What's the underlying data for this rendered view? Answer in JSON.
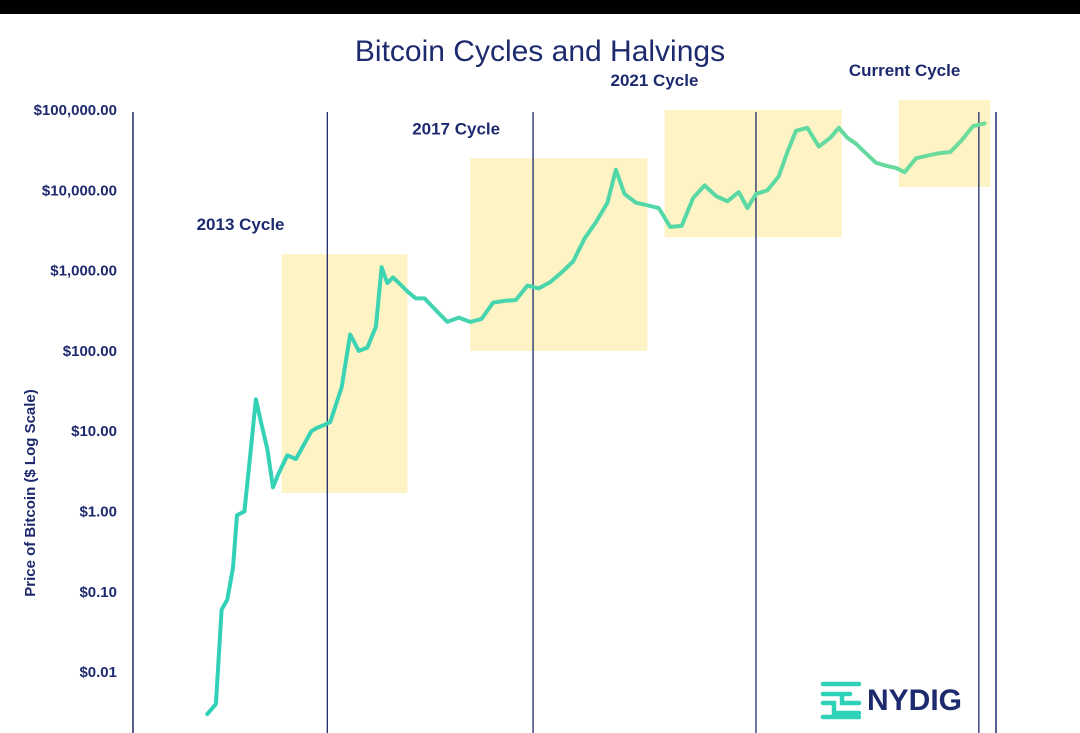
{
  "chart_data": {
    "type": "line",
    "title": "Bitcoin Cycles and Halvings",
    "ylabel": "Price of Bitcoin ($ Log Scale)",
    "y_scale": "log",
    "ylim": [
      0.003,
      100000
    ],
    "xlim": [
      2009.5,
      2024.6
    ],
    "y_ticks": [
      {
        "value": 100000,
        "label": "$100,000.00"
      },
      {
        "value": 10000,
        "label": "$10,000.00"
      },
      {
        "value": 1000,
        "label": "$1,000.00"
      },
      {
        "value": 100,
        "label": "$100.00"
      },
      {
        "value": 10,
        "label": "$10.00"
      },
      {
        "value": 1,
        "label": "$1.00"
      },
      {
        "value": 0.1,
        "label": "$0.10"
      },
      {
        "value": 0.01,
        "label": "$0.01"
      }
    ],
    "halvings": [
      2012.9,
      2016.5,
      2020.4,
      2024.3
    ],
    "cycles": [
      {
        "label": "2013 Cycle",
        "x_start": 2012.1,
        "x_end": 2014.3,
        "y_low": 1.7,
        "y_high": 1600
      },
      {
        "label": "2017 Cycle",
        "x_start": 2015.4,
        "x_end": 2018.5,
        "y_low": 100,
        "y_high": 25000
      },
      {
        "label": "2021 Cycle",
        "x_start": 2018.8,
        "x_end": 2021.9,
        "y_low": 2600,
        "y_high": 100000
      },
      {
        "label": "Current Cycle",
        "x_start": 2022.9,
        "x_end": 2024.5,
        "y_low": 11000,
        "y_high": 160000
      }
    ],
    "series": [
      {
        "x": [
          2010.8,
          2010.95,
          2011.05,
          2011.15,
          2011.25,
          2011.32,
          2011.45,
          2011.55,
          2011.65,
          2011.75,
          2011.85,
          2011.95,
          2012.05,
          2012.2,
          2012.35,
          2012.5,
          2012.62,
          2012.72,
          2012.85,
          2012.95,
          2013.15,
          2013.3,
          2013.45,
          2013.6,
          2013.75,
          2013.85,
          2013.95,
          2014.05,
          2014.2,
          2014.3,
          2014.45,
          2014.6,
          2014.8,
          2015.0,
          2015.2,
          2015.4,
          2015.6,
          2015.8,
          2016.0,
          2016.2,
          2016.4,
          2016.6,
          2016.8,
          2017.0,
          2017.2,
          2017.4,
          2017.6,
          2017.8,
          2017.95,
          2018.1,
          2018.3,
          2018.5,
          2018.7,
          2018.9,
          2019.1,
          2019.3,
          2019.5,
          2019.7,
          2019.9,
          2020.1,
          2020.25,
          2020.4,
          2020.6,
          2020.8,
          2020.95,
          2021.1,
          2021.3,
          2021.5,
          2021.7,
          2021.85,
          2022.0,
          2022.15,
          2022.3,
          2022.5,
          2022.7,
          2022.85,
          2023.0,
          2023.2,
          2023.4,
          2023.6,
          2023.8,
          2024.0,
          2024.2,
          2024.4
        ],
        "y": [
          0.003,
          0.004,
          0.06,
          0.08,
          0.2,
          0.9,
          1.0,
          5,
          25,
          12,
          6,
          2,
          3,
          5,
          4.5,
          7,
          10,
          11,
          12,
          13,
          35,
          160,
          100,
          110,
          200,
          1100,
          700,
          820,
          650,
          550,
          450,
          450,
          320,
          230,
          260,
          230,
          250,
          400,
          420,
          430,
          650,
          600,
          720,
          950,
          1300,
          2500,
          4000,
          7000,
          18000,
          9000,
          7000,
          6500,
          6000,
          3500,
          3600,
          8000,
          11500,
          8500,
          7300,
          9500,
          6000,
          9000,
          10000,
          15000,
          30000,
          55000,
          60000,
          35000,
          45000,
          60000,
          45000,
          38000,
          30000,
          22000,
          20000,
          19000,
          16800,
          25000,
          27000,
          29000,
          30000,
          42000,
          63000,
          68000
        ]
      }
    ],
    "logo": "NYDIG",
    "colors": {
      "line_start": "#2fd1b8",
      "line_end": "#6fdc9a",
      "box": "#fdf3c4",
      "text": "#1e2a6e",
      "axis": "#1e2a6e"
    }
  }
}
